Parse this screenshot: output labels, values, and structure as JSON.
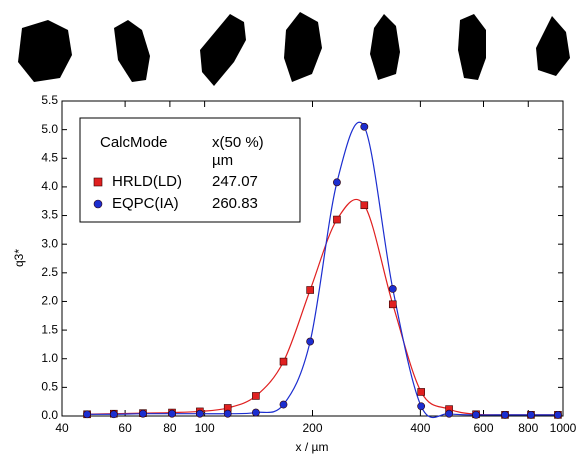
{
  "chart_data": {
    "type": "line",
    "ylabel": "q3*",
    "xlabel": "x / µm",
    "xscale": "log",
    "grid": false,
    "xlim": [
      40,
      1000
    ],
    "ylim": [
      0,
      5.5
    ],
    "xticks": [
      40,
      60,
      80,
      100,
      200,
      400,
      600,
      800,
      1000
    ],
    "yticks": [
      {
        "value": 0,
        "label": "0.0"
      },
      {
        "value": 0.5,
        "label": "0.5"
      },
      {
        "value": 1,
        "label": "1.0"
      },
      {
        "value": 1.5,
        "label": "1.5"
      },
      {
        "value": 2,
        "label": "2.0"
      },
      {
        "value": 2.5,
        "label": "2.5"
      },
      {
        "value": 3,
        "label": "3.0"
      },
      {
        "value": 3.5,
        "label": "3.5"
      },
      {
        "value": 4,
        "label": "4.0"
      },
      {
        "value": 4.5,
        "label": "4.5"
      },
      {
        "value": 5,
        "label": "5.0"
      },
      {
        "value": 5.5,
        "label": "5.5"
      }
    ],
    "legend_title": "CalcMode",
    "legend_value_header": "x(50 %)",
    "legend_value_unit": "µm",
    "legend": "upper left",
    "x": [
      47,
      55.8,
      67.3,
      81.1,
      97,
      116,
      139,
      166,
      197,
      234,
      279,
      335,
      402,
      481,
      572,
      689,
      814,
      968
    ],
    "series": [
      {
        "name": "HRLD(LD)",
        "color": "#e02020",
        "marker": "square",
        "x50": 247.07,
        "values": [
          0.03,
          0.04,
          0.05,
          0.06,
          0.08,
          0.14,
          0.35,
          0.95,
          2.2,
          3.43,
          3.68,
          1.95,
          0.42,
          0.12,
          0.03,
          0.02,
          0.02,
          0.02
        ]
      },
      {
        "name": "EQPC(IA)",
        "color": "#1c2ed0",
        "marker": "circle",
        "x50": 260.83,
        "values": [
          0.03,
          0.03,
          0.04,
          0.04,
          0.04,
          0.04,
          0.06,
          0.2,
          1.3,
          4.08,
          5.05,
          2.22,
          0.17,
          0.04,
          0.02,
          0.02,
          0.02,
          0.02
        ]
      }
    ]
  }
}
